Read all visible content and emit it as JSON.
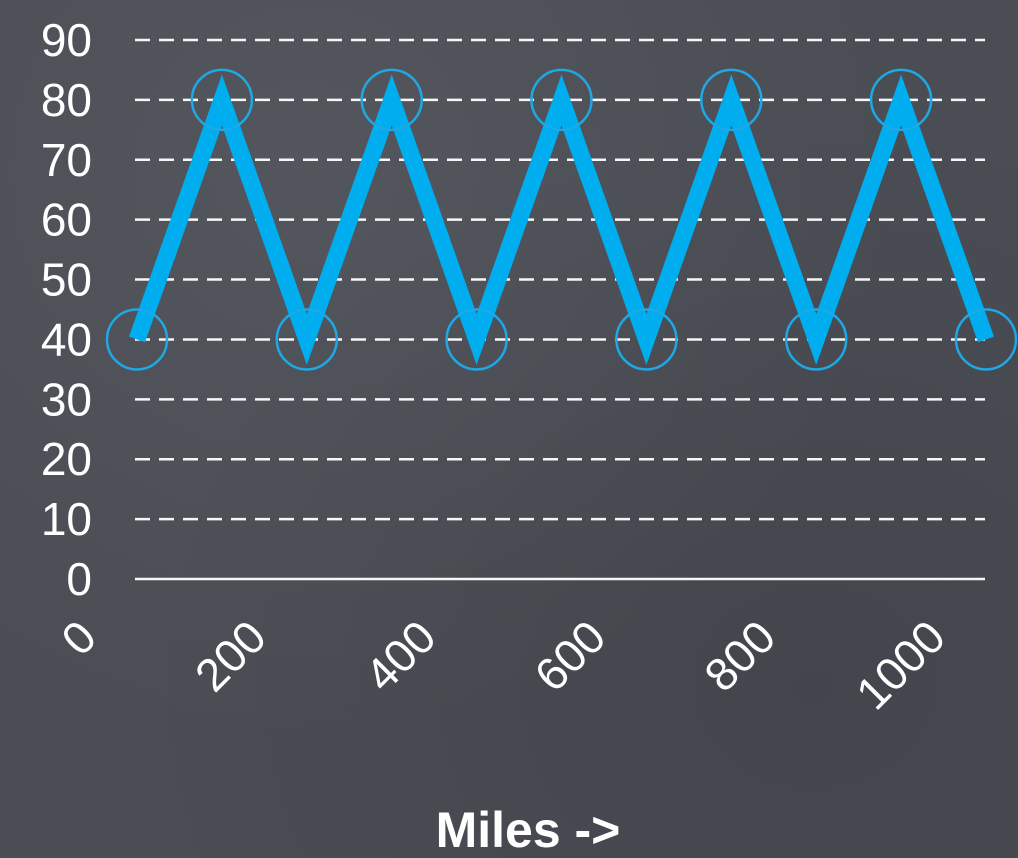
{
  "chart_data": {
    "type": "line",
    "title": "",
    "xlabel": "Miles ->",
    "ylabel": "",
    "ylim": [
      0,
      90
    ],
    "yticks": [
      "0",
      "10",
      "20",
      "30",
      "40",
      "50",
      "60",
      "70",
      "80",
      "90"
    ],
    "xticks": [
      "0",
      "200",
      "400",
      "600",
      "800",
      "1000"
    ],
    "xlim": [
      0,
      1000
    ],
    "grid": "dashed horizontal",
    "legend": "none",
    "series": [
      {
        "x": [
          0,
          100,
          200,
          300,
          400,
          500,
          600,
          700,
          800,
          900,
          1000
        ],
        "y": [
          40,
          80,
          40,
          80,
          40,
          80,
          40,
          80,
          40,
          80,
          40
        ]
      }
    ],
    "colors": {
      "line": "#00aeef",
      "marker": "#1fa8e6",
      "grid": "#ffffff",
      "text": "#ffffff",
      "background": "#4a4d54"
    }
  }
}
